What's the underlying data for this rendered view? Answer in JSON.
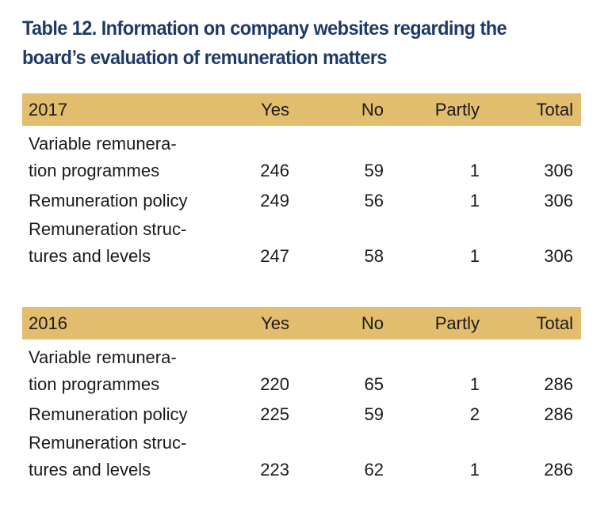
{
  "title_line1": "Table 12. Information on company websites regarding the",
  "title_line2": "board’s evaluation of remuneration matters",
  "tables": [
    {
      "year": "2017",
      "headers": {
        "yes": "Yes",
        "no": "No",
        "partly": "Partly",
        "total": "Total"
      },
      "rows": [
        {
          "label_line1": "Variable remunera-",
          "label_line2": "tion programmes",
          "yes": "246",
          "no": "59",
          "partly": "1",
          "total": "306"
        },
        {
          "label_line1": "Remuneration policy",
          "yes": "249",
          "no": "56",
          "partly": "1",
          "total": "306"
        },
        {
          "label_line1": "Remuneration struc-",
          "label_line2": "tures and levels",
          "yes": "247",
          "no": "58",
          "partly": "1",
          "total": "306"
        }
      ]
    },
    {
      "year": "2016",
      "headers": {
        "yes": "Yes",
        "no": "No",
        "partly": "Partly",
        "total": "Total"
      },
      "rows": [
        {
          "label_line1": "Variable remunera-",
          "label_line2": "tion programmes",
          "yes": "220",
          "no": "65",
          "partly": "1",
          "total": "286"
        },
        {
          "label_line1": "Remuneration policy",
          "yes": "225",
          "no": "59",
          "partly": "2",
          "total": "286"
        },
        {
          "label_line1": "Remuneration struc-",
          "label_line2": "tures and levels",
          "yes": "223",
          "no": "62",
          "partly": "1",
          "total": "286"
        }
      ]
    }
  ],
  "colors": {
    "title": "#1f3a68",
    "header_band": "#e2bd6e"
  }
}
